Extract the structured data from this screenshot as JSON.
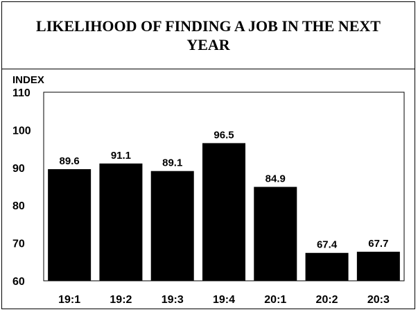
{
  "chart_data": {
    "type": "bar",
    "title": "LIKELIHOOD OF FINDING A JOB IN THE NEXT YEAR",
    "ylabel": "INDEX",
    "xlabel": "",
    "categories": [
      "19:1",
      "19:2",
      "19:3",
      "19:4",
      "20:1",
      "20:2",
      "20:3"
    ],
    "values": [
      89.6,
      91.1,
      89.1,
      96.5,
      84.9,
      67.4,
      67.7
    ],
    "data_labels": [
      "89.6",
      "91.1",
      "89.1",
      "96.5",
      "84.9",
      "67.4",
      "67.7"
    ],
    "ylim": [
      60,
      110
    ],
    "yticks": [
      60,
      70,
      80,
      90,
      100,
      110
    ],
    "bar_color": "#000000",
    "grid": false,
    "legend": "none"
  }
}
